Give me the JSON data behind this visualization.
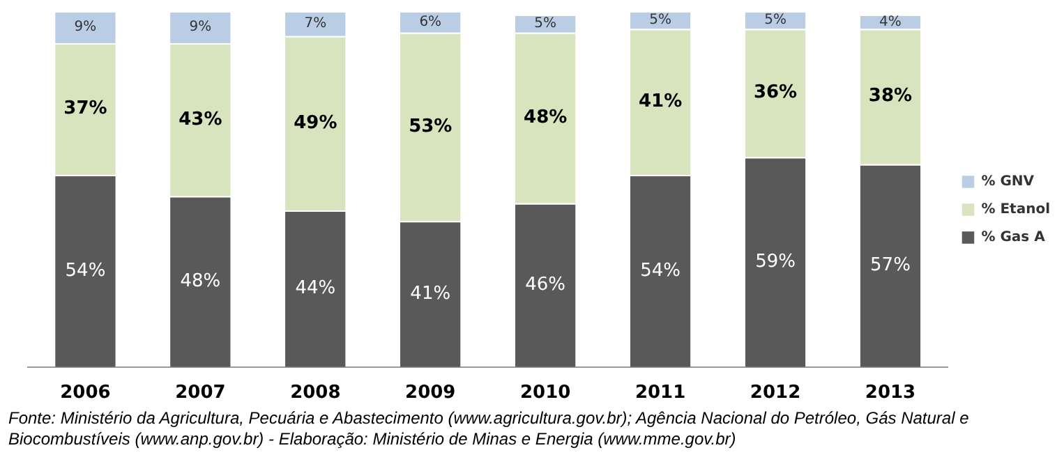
{
  "chart_data": {
    "type": "bar",
    "stacked": true,
    "legend": "right",
    "categories": [
      "2006",
      "2007",
      "2008",
      "2009",
      "2010",
      "2011",
      "2012",
      "2013"
    ],
    "series": [
      {
        "name": "% Gas A",
        "color": "#595959",
        "values": [
          54,
          48,
          44,
          41,
          46,
          54,
          59,
          57
        ],
        "value_labels": [
          "54%",
          "48%",
          "44%",
          "41%",
          "46%",
          "54%",
          "59%",
          "57%"
        ]
      },
      {
        "name": "% Etanol",
        "color": "#d7e4bd",
        "values": [
          37,
          43,
          49,
          53,
          48,
          41,
          36,
          38
        ],
        "value_labels": [
          "37%",
          "43%",
          "49%",
          "53%",
          "48%",
          "41%",
          "36%",
          "38%"
        ]
      },
      {
        "name": "% GNV",
        "color": "#b9cde5",
        "values": [
          9,
          9,
          7,
          6,
          5,
          5,
          5,
          4
        ],
        "value_labels": [
          "9%",
          "9%",
          "7%",
          "6%",
          "5%",
          "5%",
          "5%",
          "4%"
        ]
      }
    ],
    "annotations": [
      "Fonte: Ministério da Agricultura, Pecuária e Abastecimento (www.agricultura.gov.br); Agência Nacional do Petróleo, Gás Natural e Biocombustíveis (www.anp.gov.br)  - Elaboração: Ministério de Minas e Energia (www.mme.gov.br)"
    ]
  }
}
